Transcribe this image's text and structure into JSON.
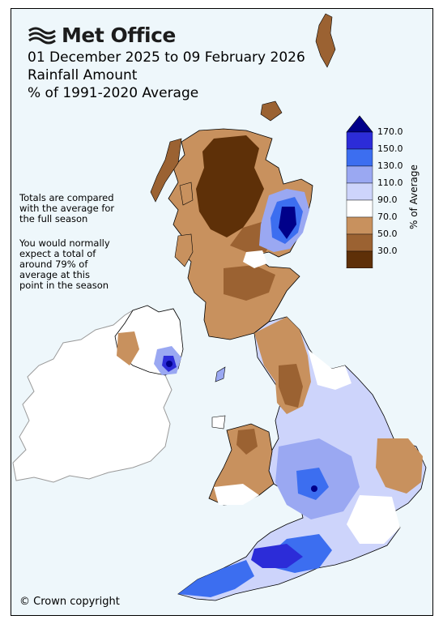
{
  "brand": {
    "name": "Met Office",
    "logo_icon": "met-office-wave-icon"
  },
  "title": {
    "date_range": "01 December 2025 to 09 February 2026",
    "variable": "Rainfall Amount",
    "baseline": "% of 1991-2020 Average"
  },
  "notes": {
    "comparison": "Totals are compared\nwith the average for\nthe full season",
    "expected": "You would normally\nexpect a total of\naround 79% of\naverage at this\npoint in the season"
  },
  "legend": {
    "title": "% of Average",
    "ticks": [
      "170.0",
      "150.0",
      "130.0",
      "110.0",
      "90.0",
      "70.0",
      "50.0",
      "30.0"
    ],
    "colors": [
      "#2c2cd8",
      "#3c6ef0",
      "#9aa8f2",
      "#cdd4fb",
      "#ffffff",
      "#c8915e",
      "#9b6232",
      "#5e3008"
    ],
    "over_color": "#00008a",
    "under_color": "#3a1a02"
  },
  "map": {
    "background_color": "#eef7fb",
    "ireland_color": "#ffffff",
    "coast_color": "#000000"
  },
  "copyright": "© Crown copyright"
}
